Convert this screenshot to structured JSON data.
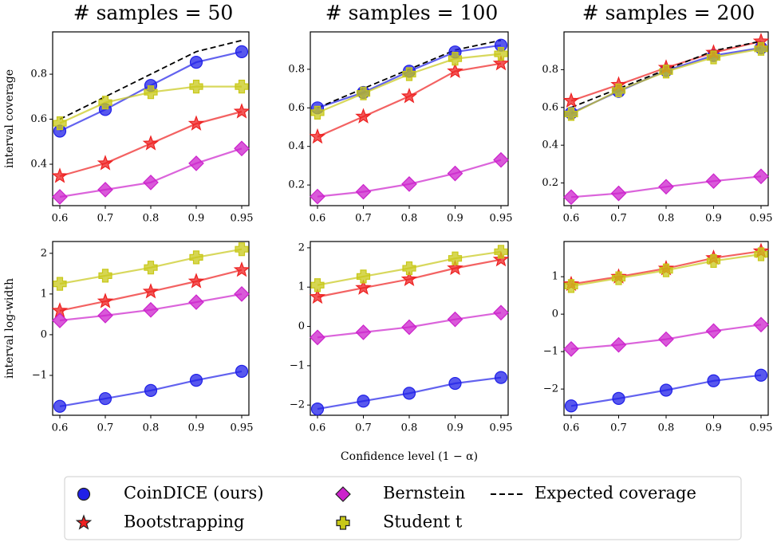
{
  "chart_data": [
    {
      "type": "line",
      "title": "# samples = 50",
      "ylabel": "interval coverage",
      "categories": [
        "0.6",
        "0.7",
        "0.8",
        "0.9",
        "0.95"
      ],
      "ylim": [
        0.216,
        0.988
      ],
      "yticks": [
        0.4,
        0.6,
        0.8
      ],
      "series": [
        {
          "name": "CoinDICE (ours)",
          "color": "#2020e8",
          "marker": "circle",
          "values": [
            0.547,
            0.643,
            0.75,
            0.853,
            0.9
          ]
        },
        {
          "name": "Bootstrapping",
          "color": "#ee2020",
          "marker": "star",
          "values": [
            0.347,
            0.404,
            0.492,
            0.58,
            0.634
          ]
        },
        {
          "name": "Bernstein",
          "color": "#cc22cc",
          "marker": "diamond",
          "values": [
            0.255,
            0.287,
            0.319,
            0.404,
            0.47
          ]
        },
        {
          "name": "Student t",
          "color": "#c8c818",
          "marker": "plus",
          "values": [
            0.582,
            0.674,
            0.72,
            0.745,
            0.745
          ]
        },
        {
          "name": "Expected coverage",
          "color": "#000000",
          "marker": "dash",
          "values": [
            0.6,
            0.7,
            0.8,
            0.9,
            0.95
          ]
        }
      ]
    },
    {
      "type": "line",
      "title": "# samples = 100",
      "categories": [
        "0.6",
        "0.7",
        "0.8",
        "0.9",
        "0.95"
      ],
      "ylim": [
        0.093,
        0.994
      ],
      "yticks": [
        0.2,
        0.4,
        0.6,
        0.8
      ],
      "series": [
        {
          "color": "#2020e8",
          "marker": "circle",
          "values": [
            0.6,
            0.68,
            0.79,
            0.89,
            0.925
          ]
        },
        {
          "color": "#ee2020",
          "marker": "star",
          "values": [
            0.45,
            0.555,
            0.66,
            0.79,
            0.83
          ]
        },
        {
          "color": "#cc22cc",
          "marker": "diamond",
          "values": [
            0.14,
            0.165,
            0.205,
            0.26,
            0.33
          ]
        },
        {
          "color": "#c8c818",
          "marker": "plus",
          "values": [
            0.575,
            0.675,
            0.775,
            0.855,
            0.88
          ]
        },
        {
          "color": "#000000",
          "marker": "dash",
          "values": [
            0.6,
            0.7,
            0.8,
            0.9,
            0.95
          ]
        }
      ]
    },
    {
      "type": "line",
      "title": "# samples = 200",
      "categories": [
        "0.6",
        "0.7",
        "0.8",
        "0.9",
        "0.95"
      ],
      "ylim": [
        0.08,
        1.0
      ],
      "yticks": [
        0.2,
        0.4,
        0.6,
        0.8
      ],
      "series": [
        {
          "color": "#2020e8",
          "marker": "circle",
          "values": [
            0.57,
            0.685,
            0.795,
            0.875,
            0.915
          ]
        },
        {
          "color": "#ee2020",
          "marker": "star",
          "values": [
            0.635,
            0.72,
            0.81,
            0.89,
            0.95
          ]
        },
        {
          "color": "#cc22cc",
          "marker": "diamond",
          "values": [
            0.125,
            0.145,
            0.18,
            0.21,
            0.235
          ]
        },
        {
          "color": "#c8c818",
          "marker": "plus",
          "values": [
            0.565,
            0.69,
            0.79,
            0.865,
            0.91
          ]
        },
        {
          "color": "#000000",
          "marker": "dash",
          "values": [
            0.6,
            0.7,
            0.8,
            0.9,
            0.95
          ]
        }
      ]
    },
    {
      "type": "line",
      "ylabel": "interval log-width",
      "categories": [
        "0.6",
        "0.7",
        "0.8",
        "0.9",
        "0.95"
      ],
      "ylim": [
        -1.98,
        2.29
      ],
      "yticks": [
        {
          "value": -1,
          "label": "−1"
        },
        0,
        1,
        2
      ],
      "series": [
        {
          "color": "#2020e8",
          "marker": "circle",
          "values": [
            -1.76,
            -1.57,
            -1.37,
            -1.12,
            -0.9
          ]
        },
        {
          "color": "#ee2020",
          "marker": "star",
          "values": [
            0.59,
            0.82,
            1.06,
            1.31,
            1.59
          ]
        },
        {
          "color": "#cc22cc",
          "marker": "diamond",
          "values": [
            0.35,
            0.47,
            0.61,
            0.8,
            1.0
          ]
        },
        {
          "color": "#c8c818",
          "marker": "plus",
          "values": [
            1.25,
            1.45,
            1.65,
            1.9,
            2.1
          ]
        }
      ]
    },
    {
      "type": "line",
      "xlabel": "Confidence level (1 − α)",
      "categories": [
        "0.6",
        "0.7",
        "0.8",
        "0.9",
        "0.95"
      ],
      "ylim": [
        -2.26,
        2.16
      ],
      "yticks": [
        {
          "value": -2,
          "label": "−2"
        },
        {
          "value": -1,
          "label": "−1"
        },
        0,
        1,
        2
      ],
      "series": [
        {
          "color": "#2020e8",
          "marker": "circle",
          "values": [
            -2.1,
            -1.9,
            -1.7,
            -1.45,
            -1.3
          ]
        },
        {
          "color": "#ee2020",
          "marker": "star",
          "values": [
            0.75,
            0.98,
            1.2,
            1.48,
            1.7
          ]
        },
        {
          "color": "#cc22cc",
          "marker": "diamond",
          "values": [
            -0.28,
            -0.15,
            -0.02,
            0.18,
            0.35
          ]
        },
        {
          "color": "#c8c818",
          "marker": "plus",
          "values": [
            1.05,
            1.27,
            1.48,
            1.73,
            1.9
          ]
        }
      ]
    },
    {
      "type": "line",
      "categories": [
        "0.6",
        "0.7",
        "0.8",
        "0.9",
        "0.95"
      ],
      "ylim": [
        -2.7,
        1.94
      ],
      "yticks": [
        {
          "value": -2,
          "label": "−2"
        },
        {
          "value": -1,
          "label": "−1"
        },
        0,
        1
      ],
      "series": [
        {
          "color": "#2020e8",
          "marker": "circle",
          "values": [
            -2.45,
            -2.25,
            -2.03,
            -1.78,
            -1.63
          ]
        },
        {
          "color": "#ee2020",
          "marker": "star",
          "values": [
            0.8,
            1.0,
            1.22,
            1.5,
            1.68
          ]
        },
        {
          "color": "#cc22cc",
          "marker": "diamond",
          "values": [
            -0.93,
            -0.82,
            -0.67,
            -0.45,
            -0.28
          ]
        },
        {
          "color": "#c8c818",
          "marker": "plus",
          "values": [
            0.75,
            0.96,
            1.17,
            1.42,
            1.6
          ]
        }
      ]
    }
  ]
}
